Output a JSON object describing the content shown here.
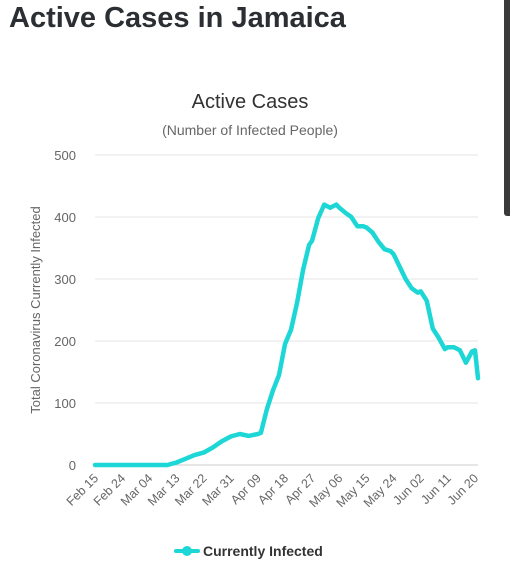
{
  "page": {
    "title": "Active Cases in Jamaica"
  },
  "colors": {
    "series": "#1dd6d6",
    "grid": "#e6e6e6",
    "text": "#666666",
    "title": "#333333"
  },
  "chart_data": {
    "type": "line",
    "title": "Active Cases",
    "subtitle": "(Number of Infected People)",
    "ylabel": "Total Coronavirus Currently Infected",
    "xlabel": "",
    "ylim": [
      0,
      500
    ],
    "yticks": [
      0,
      100,
      200,
      300,
      400,
      500
    ],
    "xticks": [
      "Feb 15",
      "Feb 24",
      "Mar 04",
      "Mar 13",
      "Mar 22",
      "Mar 31",
      "Apr 09",
      "Apr 18",
      "Apr 27",
      "May 06",
      "May 15",
      "May 24",
      "Jun 02",
      "Jun 11",
      "Jun 20"
    ],
    "grid": true,
    "legend": "bottom",
    "series": [
      {
        "name": "Currently Infected",
        "x": [
          "Feb 15",
          "Feb 24",
          "Mar 04",
          "Mar 10",
          "Mar 13",
          "Mar 16",
          "Mar 19",
          "Mar 22",
          "Mar 25",
          "Mar 28",
          "Mar 31",
          "Apr 03",
          "Apr 06",
          "Apr 09",
          "Apr 10",
          "Apr 12",
          "Apr 14",
          "Apr 16",
          "Apr 18",
          "Apr 20",
          "Apr 22",
          "Apr 24",
          "Apr 26",
          "Apr 27",
          "Apr 29",
          "May 01",
          "May 03",
          "May 05",
          "May 06",
          "May 08",
          "May 10",
          "May 12",
          "May 14",
          "May 15",
          "May 17",
          "May 19",
          "May 21",
          "May 23",
          "May 24",
          "May 26",
          "May 28",
          "May 30",
          "Jun 01",
          "Jun 02",
          "Jun 04",
          "Jun 06",
          "Jun 08",
          "Jun 10",
          "Jun 11",
          "Jun 13",
          "Jun 15",
          "Jun 17",
          "Jun 19",
          "Jun 20",
          "Jun 21"
        ],
        "values": [
          0,
          0,
          0,
          0,
          4,
          10,
          16,
          20,
          28,
          38,
          46,
          50,
          47,
          50,
          52,
          90,
          120,
          145,
          195,
          218,
          262,
          315,
          355,
          362,
          398,
          420,
          415,
          420,
          415,
          407,
          400,
          385,
          385,
          383,
          375,
          360,
          348,
          345,
          340,
          320,
          300,
          285,
          278,
          280,
          265,
          220,
          205,
          187,
          190,
          190,
          185,
          165,
          183,
          185,
          140
        ]
      }
    ]
  }
}
